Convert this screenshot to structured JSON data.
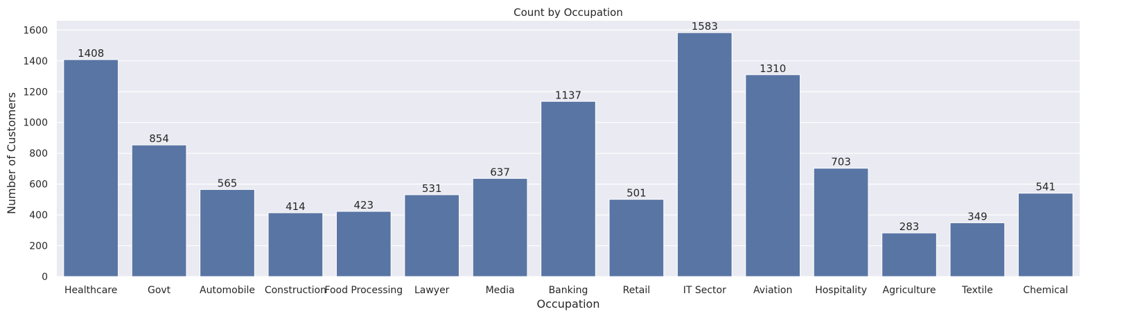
{
  "chart_data": {
    "type": "bar",
    "title": "Count by Occupation",
    "xlabel": "Occupation",
    "ylabel": "Number of Customers",
    "ylim": [
      0,
      1660
    ],
    "yticks": [
      0,
      200,
      400,
      600,
      800,
      1000,
      1200,
      1400,
      1600
    ],
    "grid": true,
    "legend": "none",
    "categories": [
      "Healthcare",
      "Govt",
      "Automobile",
      "Construction",
      "Food Processing",
      "Lawyer",
      "Media",
      "Banking",
      "Retail",
      "IT Sector",
      "Aviation",
      "Hospitality",
      "Agriculture",
      "Textile",
      "Chemical"
    ],
    "values": [
      1408,
      854,
      565,
      414,
      423,
      531,
      637,
      1137,
      501,
      1583,
      1310,
      703,
      283,
      349,
      541
    ],
    "bar_color": "#5975a4",
    "plot_background": "#eaeaf2",
    "grid_color": "#ffffff"
  }
}
